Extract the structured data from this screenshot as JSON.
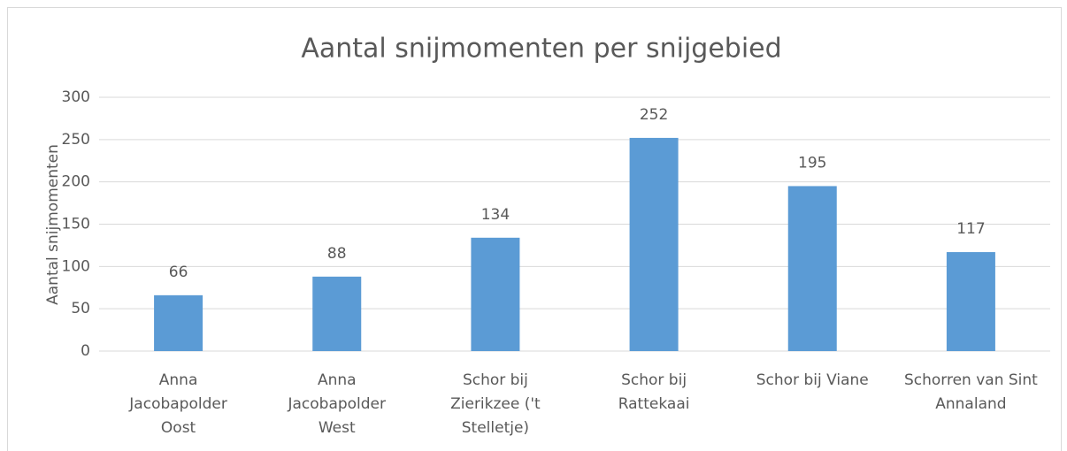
{
  "chart_data": {
    "type": "bar",
    "title": "Aantal snijmomenten per snijgebied",
    "y_label": "Aantal snijmomenten",
    "categories": [
      [
        "Anna",
        "Jacobapolder",
        "Oost"
      ],
      [
        "Anna",
        "Jacobapolder",
        "West"
      ],
      [
        "Schor bij",
        "Zierikzee ('t",
        "Stelletje)"
      ],
      [
        "Schor bij",
        "Rattekaai"
      ],
      [
        "Schor bij Viane"
      ],
      [
        "Schorren van Sint",
        "Annaland"
      ]
    ],
    "values": [
      66,
      88,
      134,
      252,
      195,
      117
    ],
    "color": "#5b9bd5",
    "ylim": [
      0,
      300
    ],
    "yticks": [
      0,
      50,
      100,
      150,
      200,
      250,
      300
    ],
    "grid": true
  }
}
